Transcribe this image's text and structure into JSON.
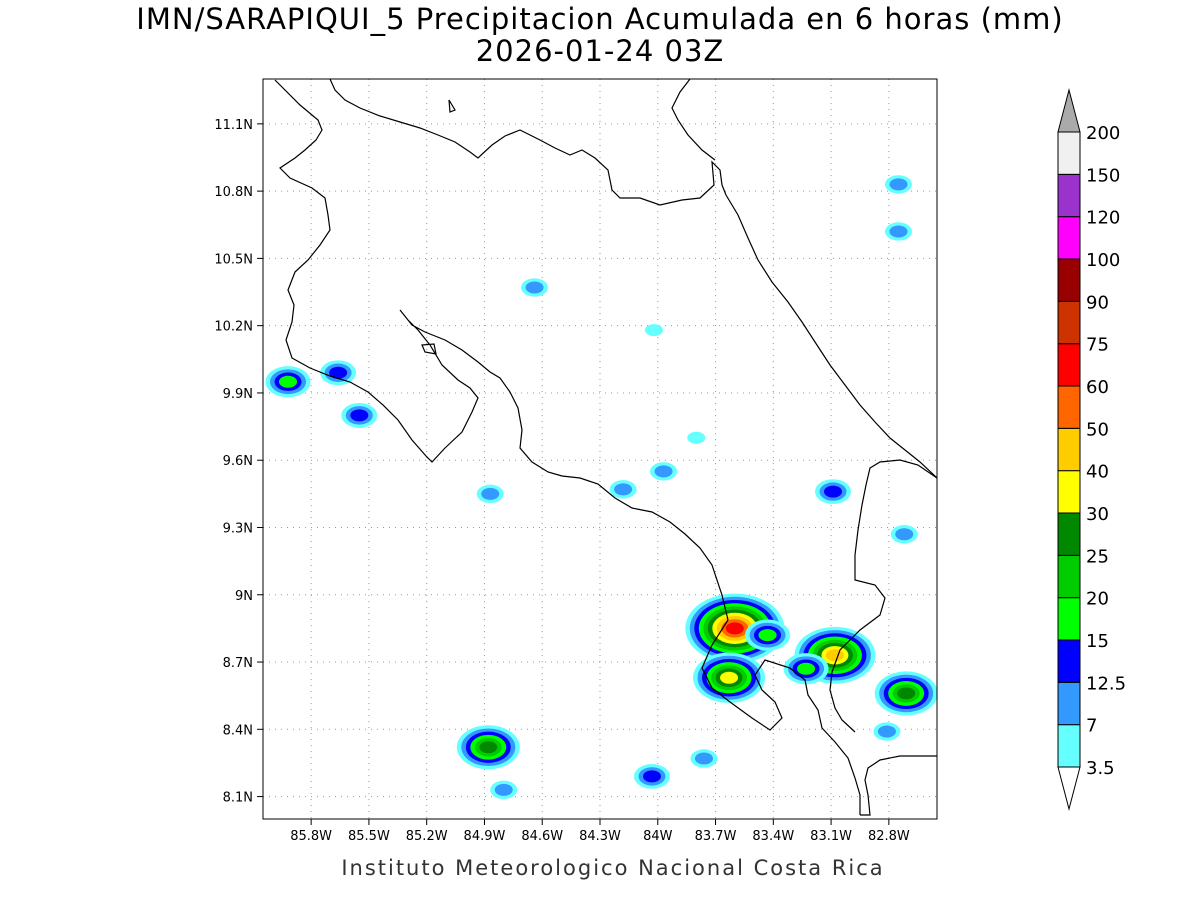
{
  "title": {
    "line1": "IMN/SARAPIQUI_5 Precipitacion Acumulada en 6 horas (mm)",
    "line2": "2026-01-24 03Z"
  },
  "footer": "Instituto Meteorologico Nacional Costa Rica",
  "map": {
    "lon_range": [
      -86.05,
      -82.55
    ],
    "lat_range": [
      8.0,
      11.3
    ],
    "lon_ticks": [
      {
        "v": -85.8,
        "label": "85.8W"
      },
      {
        "v": -85.5,
        "label": "85.5W"
      },
      {
        "v": -85.2,
        "label": "85.2W"
      },
      {
        "v": -84.9,
        "label": "84.9W"
      },
      {
        "v": -84.6,
        "label": "84.6W"
      },
      {
        "v": -84.3,
        "label": "84.3W"
      },
      {
        "v": -84.0,
        "label": "84W"
      },
      {
        "v": -83.7,
        "label": "83.7W"
      },
      {
        "v": -83.4,
        "label": "83.4W"
      },
      {
        "v": -83.1,
        "label": "83.1W"
      },
      {
        "v": -82.8,
        "label": "82.8W"
      }
    ],
    "lat_ticks": [
      {
        "v": 11.1,
        "label": "11.1N"
      },
      {
        "v": 10.8,
        "label": "10.8N"
      },
      {
        "v": 10.5,
        "label": "10.5N"
      },
      {
        "v": 10.2,
        "label": "10.2N"
      },
      {
        "v": 9.9,
        "label": "9.9N"
      },
      {
        "v": 9.6,
        "label": "9.6N"
      },
      {
        "v": 9.3,
        "label": "9.3N"
      },
      {
        "v": 9.0,
        "label": "9N"
      },
      {
        "v": 8.7,
        "label": "8.7N"
      },
      {
        "v": 8.4,
        "label": "8.4N"
      },
      {
        "v": 8.1,
        "label": "8.1N"
      }
    ],
    "grid": "dotted"
  },
  "colorbar": {
    "levels": [
      {
        "label": "3.5",
        "color": "#66ffff"
      },
      {
        "label": "7",
        "color": "#3399ff"
      },
      {
        "label": "12.5",
        "color": "#0000ff"
      },
      {
        "label": "15",
        "color": "#00ff00"
      },
      {
        "label": "20",
        "color": "#00cc00"
      },
      {
        "label": "25",
        "color": "#008800"
      },
      {
        "label": "30",
        "color": "#ffff00"
      },
      {
        "label": "40",
        "color": "#ffcc00"
      },
      {
        "label": "50",
        "color": "#ff6600"
      },
      {
        "label": "60",
        "color": "#ff0000"
      },
      {
        "label": "75",
        "color": "#cc3300"
      },
      {
        "label": "90",
        "color": "#990000"
      },
      {
        "label": "100",
        "color": "#ff00ff"
      },
      {
        "label": "120",
        "color": "#9933cc"
      },
      {
        "label": "150",
        "color": "#f0f0f0"
      },
      {
        "label": "200",
        "color": "#aaaaaa"
      }
    ]
  },
  "precip_cells": [
    {
      "lon": -85.66,
      "lat": 9.99,
      "level": 2
    },
    {
      "lon": -85.92,
      "lat": 9.95,
      "level": 3
    },
    {
      "lon": -85.55,
      "lat": 9.8,
      "level": 2
    },
    {
      "lon": -84.64,
      "lat": 10.37,
      "level": 1
    },
    {
      "lon": -84.02,
      "lat": 10.18,
      "level": 0
    },
    {
      "lon": -82.75,
      "lat": 10.83,
      "level": 1
    },
    {
      "lon": -82.75,
      "lat": 10.62,
      "level": 1
    },
    {
      "lon": -83.8,
      "lat": 9.7,
      "level": 0
    },
    {
      "lon": -84.87,
      "lat": 9.45,
      "level": 1
    },
    {
      "lon": -84.18,
      "lat": 9.47,
      "level": 1
    },
    {
      "lon": -83.97,
      "lat": 9.55,
      "level": 1
    },
    {
      "lon": -83.09,
      "lat": 9.46,
      "level": 2
    },
    {
      "lon": -82.72,
      "lat": 9.27,
      "level": 1
    },
    {
      "lon": -83.6,
      "lat": 8.85,
      "level": 9
    },
    {
      "lon": -83.43,
      "lat": 8.82,
      "level": 3
    },
    {
      "lon": -83.63,
      "lat": 8.63,
      "level": 6
    },
    {
      "lon": -83.08,
      "lat": 8.73,
      "level": 7
    },
    {
      "lon": -83.23,
      "lat": 8.67,
      "level": 3
    },
    {
      "lon": -82.71,
      "lat": 8.56,
      "level": 5
    },
    {
      "lon": -84.88,
      "lat": 8.32,
      "level": 5
    },
    {
      "lon": -84.8,
      "lat": 8.13,
      "level": 1
    },
    {
      "lon": -84.03,
      "lat": 8.19,
      "level": 2
    },
    {
      "lon": -83.76,
      "lat": 8.27,
      "level": 1
    },
    {
      "lon": -82.81,
      "lat": 8.39,
      "level": 1
    }
  ]
}
